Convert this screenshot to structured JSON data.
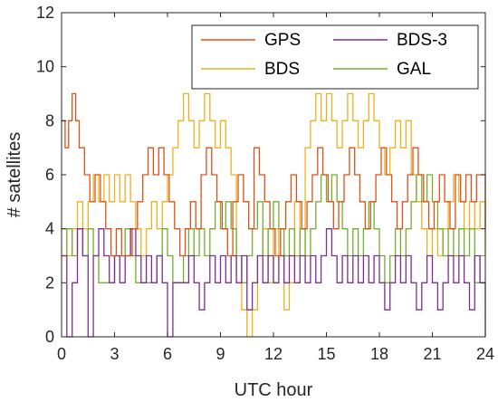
{
  "chart_data": {
    "type": "line",
    "title": "",
    "xlabel": "UTC hour",
    "ylabel": "# satellites",
    "xlim": [
      0,
      24
    ],
    "ylim": [
      0,
      12
    ],
    "xticks": [
      0,
      3,
      6,
      9,
      12,
      15,
      18,
      21,
      24
    ],
    "yticks": [
      0,
      2,
      4,
      6,
      8,
      10,
      12
    ],
    "grid": false,
    "legend_position": "top-right",
    "series": [
      {
        "name": "GPS",
        "color": "#D95319",
        "x": [
          0.0,
          0.2,
          0.4,
          0.6,
          0.8,
          1.0,
          1.3,
          1.6,
          1.9,
          2.2,
          2.5,
          2.8,
          3.1,
          3.4,
          3.7,
          4.0,
          4.3,
          4.6,
          4.9,
          5.2,
          5.5,
          5.8,
          6.1,
          6.4,
          6.7,
          7.0,
          7.3,
          7.6,
          7.9,
          8.2,
          8.5,
          8.8,
          9.1,
          9.4,
          9.7,
          10.0,
          10.3,
          10.6,
          10.9,
          11.2,
          11.5,
          11.8,
          12.1,
          12.4,
          12.7,
          13.0,
          13.3,
          13.6,
          13.9,
          14.2,
          14.5,
          14.8,
          15.1,
          15.4,
          15.7,
          16.0,
          16.3,
          16.6,
          16.9,
          17.2,
          17.5,
          17.8,
          18.1,
          18.4,
          18.7,
          19.0,
          19.3,
          19.6,
          19.9,
          20.2,
          20.5,
          20.8,
          21.1,
          21.4,
          21.7,
          22.0,
          22.3,
          22.6,
          22.9,
          23.2,
          23.5,
          23.8,
          24.0
        ],
        "y": [
          8,
          7,
          8,
          9,
          8,
          7,
          6,
          5,
          6,
          5,
          4,
          3,
          4,
          3,
          3,
          4,
          5,
          6,
          7,
          6,
          7,
          6,
          5,
          4,
          3,
          4,
          5,
          4,
          6,
          7,
          6,
          5,
          4,
          3,
          5,
          6,
          5,
          4,
          7,
          6,
          5,
          4,
          3,
          4,
          5,
          6,
          5,
          4,
          5,
          6,
          7,
          6,
          5,
          4,
          5,
          6,
          7,
          6,
          5,
          4,
          5,
          6,
          7,
          6,
          5,
          4,
          5,
          6,
          7,
          6,
          5,
          4,
          5,
          6,
          5,
          4,
          6,
          5,
          6,
          5,
          6,
          6,
          4
        ]
      },
      {
        "name": "BDS",
        "color": "#EDB120",
        "x": [
          0.0,
          0.3,
          0.6,
          0.9,
          1.2,
          1.5,
          1.8,
          2.1,
          2.4,
          2.7,
          3.0,
          3.3,
          3.6,
          3.9,
          4.2,
          4.5,
          4.8,
          5.1,
          5.4,
          5.7,
          6.0,
          6.3,
          6.6,
          6.9,
          7.2,
          7.5,
          7.8,
          8.1,
          8.4,
          8.7,
          9.0,
          9.3,
          9.6,
          9.9,
          10.2,
          10.5,
          10.8,
          11.1,
          11.4,
          11.7,
          12.0,
          12.3,
          12.6,
          12.9,
          13.2,
          13.5,
          13.8,
          14.1,
          14.4,
          14.7,
          15.0,
          15.3,
          15.6,
          15.9,
          16.2,
          16.5,
          16.8,
          17.1,
          17.4,
          17.7,
          18.0,
          18.3,
          18.6,
          18.9,
          19.2,
          19.5,
          19.8,
          20.1,
          20.4,
          20.7,
          21.0,
          21.3,
          21.6,
          21.9,
          22.2,
          22.5,
          22.8,
          23.1,
          23.4,
          23.7,
          24.0
        ],
        "y": [
          4,
          3,
          4,
          5,
          4,
          5,
          6,
          5,
          6,
          5,
          6,
          5,
          6,
          5,
          4,
          3,
          4,
          5,
          4,
          5,
          6,
          7,
          8,
          9,
          8,
          7,
          8,
          9,
          8,
          7,
          8,
          7,
          6,
          2,
          1,
          0,
          1,
          3,
          4,
          2,
          4,
          3,
          1,
          2,
          5,
          3,
          7,
          8,
          9,
          8,
          9,
          8,
          7,
          8,
          9,
          8,
          7,
          8,
          9,
          8,
          7,
          6,
          7,
          8,
          7,
          8,
          6,
          5,
          4,
          3,
          4,
          3,
          4,
          5,
          6,
          5,
          4,
          5,
          4,
          5,
          3
        ]
      },
      {
        "name": "BDS-3",
        "color": "#7E2F8E",
        "x": [
          0.0,
          0.3,
          0.6,
          0.9,
          1.2,
          1.5,
          1.8,
          2.1,
          2.4,
          2.7,
          3.0,
          3.3,
          3.6,
          3.9,
          4.2,
          4.5,
          4.8,
          5.1,
          5.4,
          5.7,
          6.0,
          6.3,
          6.6,
          6.9,
          7.2,
          7.5,
          7.8,
          8.1,
          8.4,
          8.7,
          9.0,
          9.3,
          9.6,
          9.9,
          10.2,
          10.5,
          10.8,
          11.1,
          11.4,
          11.7,
          12.0,
          12.3,
          12.6,
          12.9,
          13.2,
          13.5,
          13.8,
          14.1,
          14.4,
          14.7,
          15.0,
          15.3,
          15.6,
          15.9,
          16.2,
          16.5,
          16.8,
          17.1,
          17.4,
          17.7,
          18.0,
          18.3,
          18.6,
          18.9,
          19.2,
          19.5,
          19.8,
          20.1,
          20.4,
          20.7,
          21.0,
          21.3,
          21.6,
          21.9,
          22.2,
          22.5,
          22.8,
          23.1,
          23.4,
          23.7,
          24.0
        ],
        "y": [
          3,
          0,
          2,
          4,
          3,
          0,
          3,
          4,
          3,
          2,
          3,
          2,
          3,
          4,
          3,
          2,
          3,
          2,
          3,
          2,
          0,
          2,
          2,
          2,
          3,
          2,
          1,
          2,
          3,
          2,
          3,
          2,
          3,
          2,
          3,
          1,
          2,
          3,
          2,
          3,
          2,
          3,
          2,
          3,
          2,
          3,
          2,
          3,
          2,
          3,
          4,
          3,
          2,
          3,
          2,
          3,
          2,
          3,
          2,
          3,
          2,
          1,
          2,
          3,
          2,
          3,
          2,
          1,
          2,
          3,
          2,
          1,
          2,
          3,
          2,
          3,
          2,
          1,
          3,
          2,
          0
        ]
      },
      {
        "name": "GAL",
        "color": "#77AC30",
        "x": [
          0.0,
          0.3,
          0.6,
          0.9,
          1.2,
          1.5,
          1.8,
          2.1,
          2.4,
          2.7,
          3.0,
          3.3,
          3.6,
          3.9,
          4.2,
          4.5,
          4.8,
          5.1,
          5.4,
          5.7,
          6.0,
          6.3,
          6.6,
          6.9,
          7.2,
          7.5,
          7.8,
          8.1,
          8.4,
          8.7,
          9.0,
          9.3,
          9.6,
          9.9,
          10.2,
          10.5,
          10.8,
          11.1,
          11.4,
          11.7,
          12.0,
          12.3,
          12.6,
          12.9,
          13.2,
          13.5,
          13.8,
          14.1,
          14.4,
          14.7,
          15.0,
          15.3,
          15.6,
          15.9,
          16.2,
          16.5,
          16.8,
          17.1,
          17.4,
          17.7,
          18.0,
          18.3,
          18.6,
          18.9,
          19.2,
          19.5,
          19.8,
          20.1,
          20.4,
          20.7,
          21.0,
          21.3,
          21.6,
          21.9,
          22.2,
          22.5,
          22.8,
          23.1,
          23.4,
          23.7,
          24.0
        ],
        "y": [
          3,
          4,
          3,
          4,
          3,
          4,
          3,
          2,
          2,
          2,
          3,
          3,
          4,
          3,
          2,
          2,
          2,
          2,
          3,
          4,
          3,
          2,
          2,
          3,
          4,
          3,
          4,
          3,
          4,
          5,
          4,
          5,
          4,
          3,
          2,
          3,
          4,
          5,
          3,
          4,
          5,
          4,
          3,
          4,
          3,
          4,
          3,
          4,
          5,
          6,
          5,
          6,
          5,
          4,
          3,
          4,
          3,
          4,
          5,
          4,
          3,
          2,
          3,
          4,
          3,
          4,
          5,
          6,
          5,
          6,
          5,
          4,
          3,
          4,
          3,
          4,
          3,
          4,
          2,
          3,
          3
        ]
      }
    ]
  }
}
